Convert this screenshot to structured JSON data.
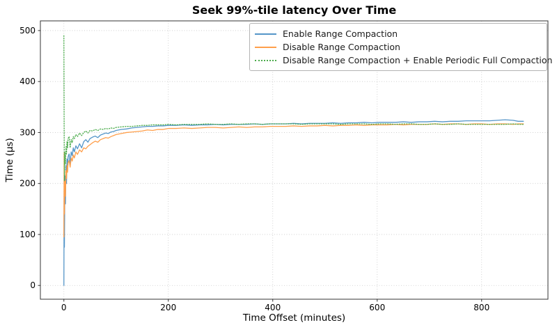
{
  "chart_data": {
    "type": "line",
    "title": "Seek 99%-tile latency Over Time",
    "xlabel": "Time Offset (minutes)",
    "ylabel": "Time (µs)",
    "xlim": [
      -45,
      927
    ],
    "ylim": [
      -27,
      519
    ],
    "xticks": [
      0,
      200,
      400,
      600,
      800
    ],
    "yticks": [
      0,
      100,
      200,
      300,
      400,
      500
    ],
    "grid": true,
    "grid_color": "#c8c8c8",
    "legend_position": "upper right",
    "x": [
      0,
      0.5,
      1,
      2,
      3,
      4,
      5,
      6,
      7,
      8,
      10,
      12,
      14,
      16,
      18,
      20,
      23,
      26,
      30,
      34,
      38,
      42,
      46,
      50,
      55,
      60,
      65,
      70,
      75,
      80,
      85,
      90,
      95,
      100,
      110,
      120,
      130,
      140,
      150,
      160,
      170,
      180,
      190,
      200,
      215,
      230,
      245,
      260,
      275,
      290,
      305,
      320,
      335,
      350,
      365,
      380,
      395,
      410,
      425,
      440,
      455,
      470,
      485,
      500,
      515,
      530,
      545,
      560,
      575,
      590,
      605,
      620,
      635,
      650,
      665,
      680,
      695,
      710,
      725,
      740,
      755,
      770,
      785,
      800,
      815,
      830,
      845,
      860,
      870,
      880
    ],
    "series": [
      {
        "name": "Enable Range Compaction",
        "color": "#5495c8",
        "style": "solid",
        "y": [
          0,
          190,
          75,
          215,
          160,
          235,
          200,
          248,
          225,
          252,
          258,
          238,
          262,
          255,
          270,
          262,
          274,
          268,
          278,
          270,
          282,
          286,
          281,
          288,
          291,
          293,
          290,
          295,
          297,
          299,
          298,
          301,
          302,
          304,
          306,
          307,
          309,
          310,
          311,
          312,
          312,
          313,
          313,
          314,
          314,
          315,
          314,
          315,
          315,
          316,
          315,
          316,
          316,
          316,
          317,
          316,
          317,
          317,
          317,
          318,
          317,
          318,
          318,
          318,
          319,
          318,
          319,
          319,
          320,
          319,
          320,
          320,
          320,
          321,
          320,
          321,
          321,
          322,
          321,
          322,
          322,
          323,
          323,
          323,
          323,
          324,
          325,
          324,
          322,
          322
        ]
      },
      {
        "name": "Disable Range Compaction",
        "color": "#ff9f4b",
        "style": "solid",
        "y": [
          95,
          260,
          140,
          205,
          175,
          225,
          210,
          235,
          222,
          240,
          245,
          232,
          250,
          244,
          256,
          250,
          262,
          257,
          266,
          262,
          270,
          268,
          273,
          276,
          280,
          283,
          281,
          286,
          288,
          290,
          289,
          292,
          294,
          296,
          298,
          300,
          301,
          302,
          303,
          305,
          304,
          306,
          306,
          308,
          308,
          309,
          308,
          309,
          310,
          310,
          309,
          310,
          311,
          310,
          311,
          311,
          312,
          312,
          312,
          313,
          312,
          313,
          313,
          314,
          313,
          314,
          314,
          315,
          314,
          315,
          315,
          315,
          316,
          315,
          316,
          316,
          316,
          317,
          316,
          317,
          317,
          316,
          317,
          317,
          316,
          317,
          317,
          316,
          317,
          317
        ]
      },
      {
        "name": "Disable Range Compaction + Enable Periodic Full Compaction",
        "color": "#4cac4c",
        "style": "dotted",
        "y": [
          490,
          310,
          205,
          262,
          238,
          272,
          258,
          282,
          270,
          288,
          292,
          270,
          286,
          280,
          292,
          288,
          296,
          292,
          299,
          294,
          300,
          303,
          299,
          304,
          303,
          306,
          304,
          307,
          306,
          308,
          307,
          309,
          308,
          310,
          311,
          312,
          312,
          313,
          314,
          314,
          315,
          315,
          315,
          316,
          315,
          316,
          316,
          316,
          317,
          316,
          316,
          317,
          316,
          317,
          317,
          316,
          317,
          317,
          317,
          317,
          316,
          317,
          317,
          317,
          317,
          316,
          317,
          317,
          317,
          316,
          317,
          317,
          316,
          317,
          317,
          316,
          316,
          317,
          316,
          316,
          317,
          316,
          316,
          316,
          316,
          316,
          316,
          317,
          316,
          316
        ]
      }
    ]
  }
}
